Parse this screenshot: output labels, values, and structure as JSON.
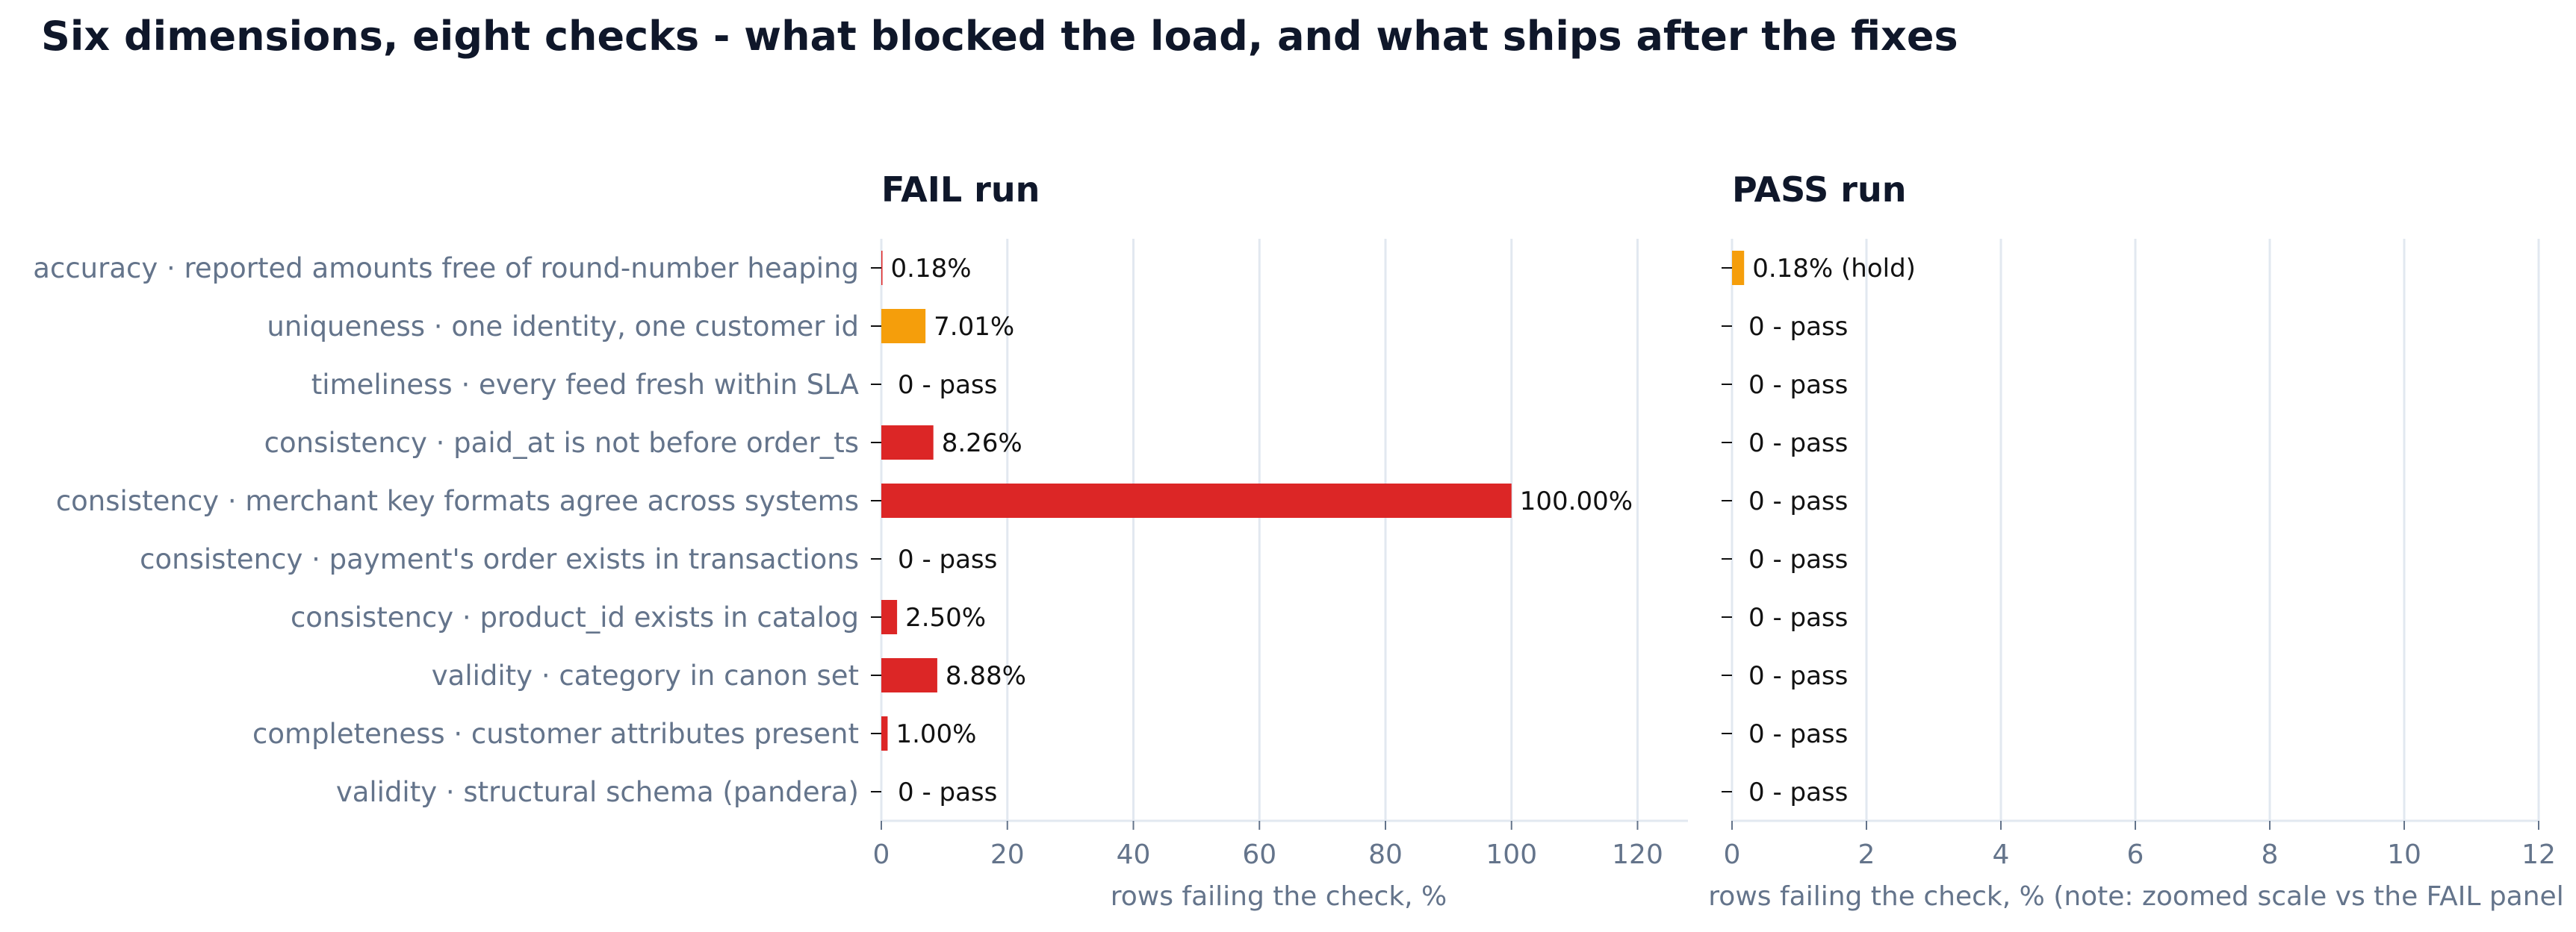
{
  "title": "Six dimensions, eight checks - what blocked the load, and what ships after the fixes",
  "chart_data": [
    {
      "type": "bar",
      "orientation": "horizontal",
      "panel_title": "FAIL run",
      "xlabel": "rows failing the check, %",
      "xlim": [
        0,
        128
      ],
      "xticks": [
        0,
        20,
        40,
        60,
        80,
        100,
        120
      ],
      "grid": true,
      "categories": [
        "accuracy · reported amounts free of round-number heaping",
        "uniqueness · one identity, one customer id",
        "timeliness · every feed fresh within SLA",
        "consistency · paid_at is not before order_ts",
        "consistency · merchant key formats agree across systems",
        "consistency · payment's order exists in transactions",
        "consistency · product_id exists in catalog",
        "validity · category in canon set",
        "completeness · customer attributes present",
        "validity · structural schema (pandera)"
      ],
      "values": [
        0.18,
        7.01,
        0,
        8.26,
        100.0,
        0,
        2.5,
        8.88,
        1.0,
        0
      ],
      "labels": [
        "0.18%",
        "7.01%",
        "0 - pass",
        "8.26%",
        "100.00%",
        "0 - pass",
        "2.50%",
        "8.88%",
        "1.00%",
        "0 - pass"
      ],
      "colors": [
        "#dc2626",
        "#f59e0b",
        "#dc2626",
        "#dc2626",
        "#dc2626",
        "#dc2626",
        "#dc2626",
        "#dc2626",
        "#dc2626",
        "#dc2626"
      ]
    },
    {
      "type": "bar",
      "orientation": "horizontal",
      "panel_title": "PASS run",
      "xlabel": "rows failing the check, % (note: zoomed scale vs the FAIL panel",
      "xlim": [
        0,
        12
      ],
      "xticks": [
        0,
        2,
        4,
        6,
        8,
        10,
        12
      ],
      "grid": true,
      "values": [
        0.18,
        0,
        0,
        0,
        0,
        0,
        0,
        0,
        0,
        0
      ],
      "labels": [
        "0.18% (hold)",
        "0 - pass",
        "0 - pass",
        "0 - pass",
        "0 - pass",
        "0 - pass",
        "0 - pass",
        "0 - pass",
        "0 - pass",
        "0 - pass"
      ],
      "colors": [
        "#f59e0b",
        "#f59e0b",
        "#f59e0b",
        "#f59e0b",
        "#f59e0b",
        "#f59e0b",
        "#f59e0b",
        "#f59e0b",
        "#f59e0b",
        "#f59e0b"
      ]
    }
  ]
}
